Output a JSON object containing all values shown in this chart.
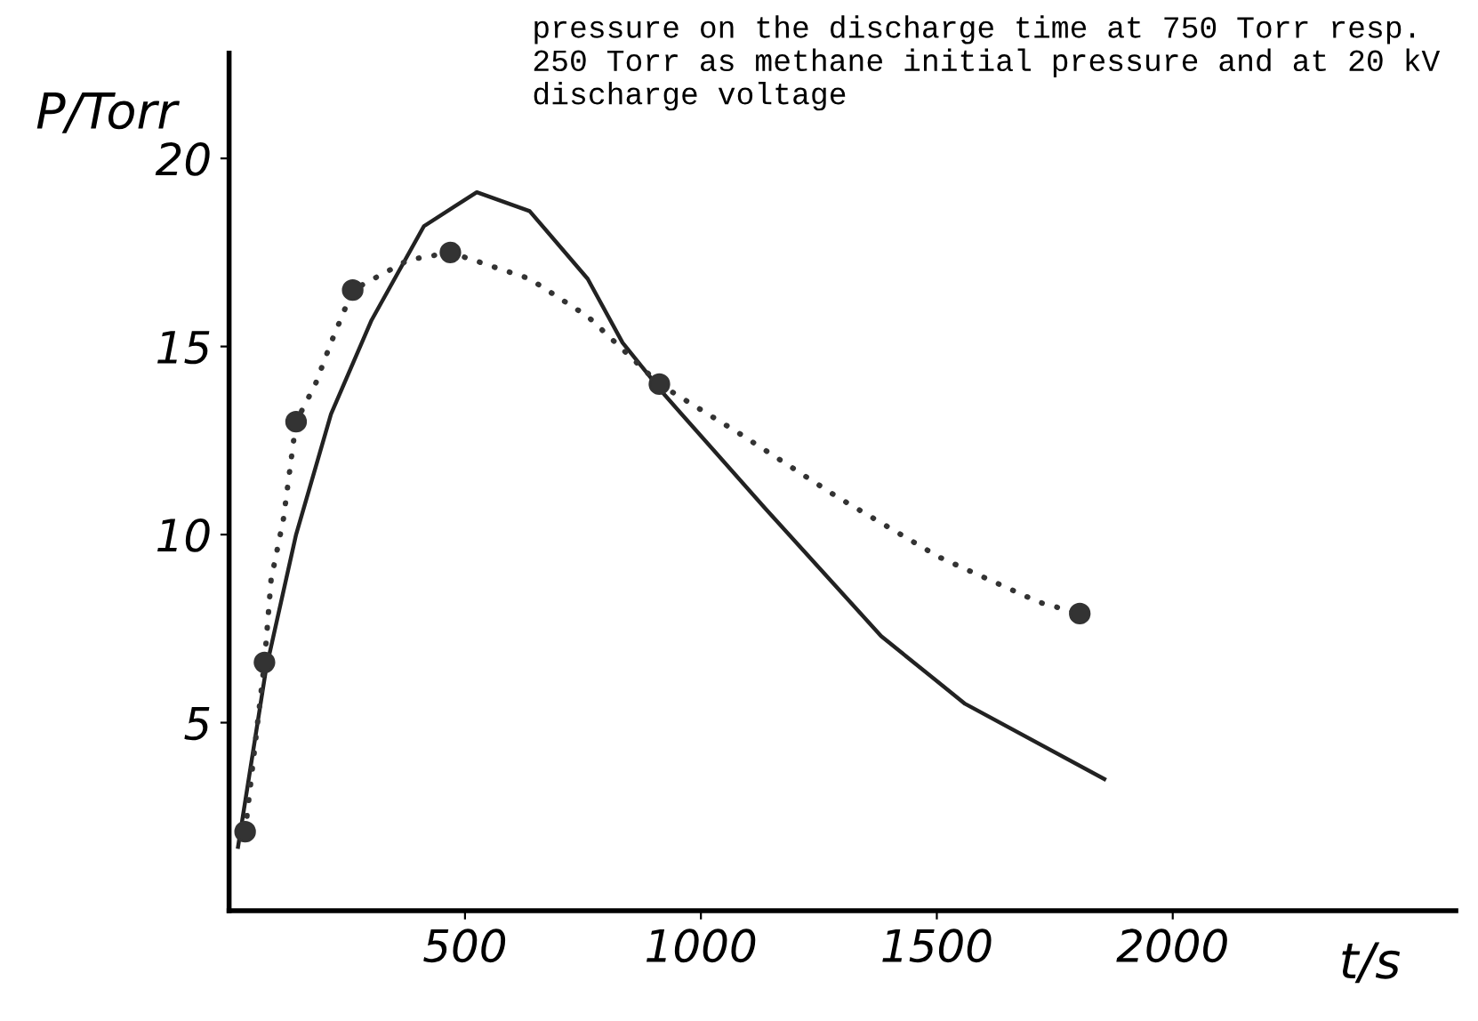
{
  "chart_data": {
    "type": "line",
    "title": "pressure on the discharge time at 750 Torr resp.\n250 Torr as methane initial pressure and at 20 kV\ndischarge voltage",
    "xlabel": "t/s",
    "ylabel": "P/Torr",
    "xlim": [
      0,
      2600
    ],
    "ylim": [
      0,
      22.8
    ],
    "xticks": [
      500,
      1000,
      1500,
      2000
    ],
    "yticks": [
      5,
      10,
      15,
      20
    ],
    "grid": false,
    "legend": false,
    "series": [
      {
        "color": "#222222",
        "line_style": "solid",
        "marker": "none",
        "x": [
          19,
          78,
          142,
          216,
          302,
          413,
          525,
          637,
          760,
          834,
          924,
          1136,
          1382,
          1560,
          1855
        ],
        "values": [
          1.7,
          6.4,
          10.0,
          13.2,
          15.7,
          18.2,
          19.1,
          18.6,
          16.8,
          15.1,
          13.7,
          10.7,
          7.3,
          5.5,
          3.5
        ]
      },
      {
        "color": "#333333",
        "line_style": "dotted",
        "marker": "none",
        "x": [
          34,
          75,
          89,
          115,
          142,
          183,
          216,
          262,
          380,
          469,
          637,
          760,
          912,
          1080,
          1289,
          1505,
          1717,
          1803
        ],
        "values": [
          2.1,
          6.6,
          8.8,
          10.4,
          13.0,
          14.0,
          15.1,
          16.5,
          17.3,
          17.5,
          16.8,
          15.8,
          14.0,
          12.7,
          11.0,
          9.4,
          8.2,
          7.9
        ]
      },
      {
        "type": "scatter",
        "color": "#333333",
        "marker": "circle",
        "x": [
          34,
          75,
          142,
          262,
          469,
          912,
          1803
        ],
        "values": [
          2.1,
          6.6,
          13.0,
          16.5,
          17.5,
          14.0,
          7.9
        ]
      }
    ]
  }
}
